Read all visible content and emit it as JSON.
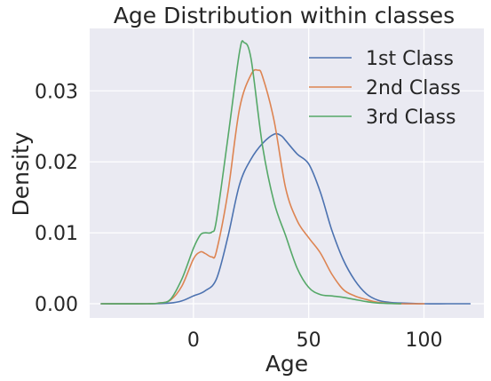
{
  "chart_data": {
    "type": "line",
    "title": "Age Distribution within classes",
    "xlabel": "Age",
    "ylabel": "Density",
    "xlim": [
      -45,
      126
    ],
    "ylim": [
      -0.002,
      0.0388
    ],
    "xticks": [
      0,
      50,
      100
    ],
    "xtick_labels": [
      "0",
      "50",
      "100"
    ],
    "yticks": [
      0.0,
      0.01,
      0.02,
      0.03
    ],
    "ytick_labels": [
      "0.00",
      "0.01",
      "0.02",
      "0.03"
    ],
    "grid": true,
    "legend_position": "top-right",
    "background_color": "#eaeaf2",
    "grid_color": "#ffffff",
    "series": [
      {
        "name": "1st Class",
        "color": "#4c72b0",
        "x": [
          -40,
          -20,
          -10,
          -5,
          0,
          5,
          10,
          15,
          20,
          25,
          30,
          35,
          38,
          40,
          45,
          50,
          55,
          60,
          65,
          70,
          75,
          80,
          85,
          90,
          100,
          110,
          120
        ],
        "y": [
          0,
          0,
          0.0001,
          0.0004,
          0.0011,
          0.0018,
          0.0035,
          0.0095,
          0.0168,
          0.0204,
          0.0226,
          0.0239,
          0.0237,
          0.023,
          0.0211,
          0.0197,
          0.0158,
          0.0104,
          0.0062,
          0.0033,
          0.0014,
          0.0005,
          0.0002,
          0.0001,
          0,
          0,
          0
        ]
      },
      {
        "name": "2nd Class",
        "color": "#dd8452",
        "x": [
          -40,
          -20,
          -15,
          -10,
          -5,
          0,
          3,
          5,
          8,
          10,
          15,
          20,
          25,
          28,
          30,
          35,
          40,
          45,
          50,
          55,
          60,
          65,
          70,
          75,
          80,
          90,
          100
        ],
        "y": [
          0,
          0,
          0.0001,
          0.0005,
          0.0025,
          0.0063,
          0.0073,
          0.0071,
          0.0066,
          0.0074,
          0.0158,
          0.0275,
          0.0323,
          0.0329,
          0.032,
          0.0258,
          0.0163,
          0.0117,
          0.0093,
          0.0072,
          0.0042,
          0.002,
          0.0011,
          0.0006,
          0.0002,
          0,
          0
        ]
      },
      {
        "name": "3rd Class",
        "color": "#55a868",
        "x": [
          -40,
          -20,
          -15,
          -10,
          -5,
          0,
          3,
          5,
          8,
          10,
          15,
          20,
          22,
          25,
          30,
          35,
          40,
          45,
          50,
          55,
          60,
          65,
          70,
          75,
          80,
          90
        ],
        "y": [
          0,
          0,
          0.0001,
          0.0006,
          0.0035,
          0.0078,
          0.0097,
          0.01,
          0.0101,
          0.0118,
          0.0235,
          0.0355,
          0.0368,
          0.0345,
          0.0222,
          0.0143,
          0.0096,
          0.005,
          0.0023,
          0.0013,
          0.0011,
          0.0009,
          0.0006,
          0.0003,
          0.0001,
          0
        ]
      }
    ]
  }
}
